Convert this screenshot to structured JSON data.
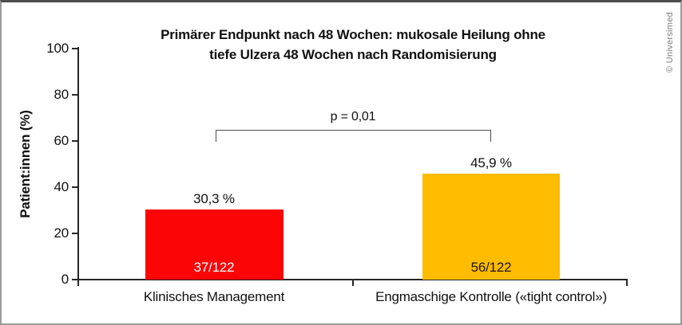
{
  "page": {
    "copyright": "© Universimed",
    "background": "#ffffff",
    "border_color": "#9a9a9a"
  },
  "chart_data": {
    "type": "bar",
    "title_line1": "Primärer Endpunkt nach 48 Wochen: mukosale Heilung ohne",
    "title_line2": "tiefe Ulzera 48 Wochen nach Randomisierung",
    "ylabel": "Patient:innen (%)",
    "xlabel": "",
    "ylim": [
      0,
      100
    ],
    "yticks": [
      0,
      20,
      40,
      60,
      80,
      100
    ],
    "grid": false,
    "legend": false,
    "axis_color": "#262626",
    "categories": [
      "Klinisches Management",
      "Engmaschige Kontrolle («tight control»)"
    ],
    "values": [
      30.3,
      45.9
    ],
    "bars": [
      {
        "category": "Klinisches Management",
        "value": 30.3,
        "value_label": "30,3 %",
        "count_label": "37/122",
        "color": "#fb0507",
        "count_text_color": "#ffffff"
      },
      {
        "category": "Engmaschige Kontrolle («tight control»)",
        "value": 45.9,
        "value_label": "45,9 %",
        "count_label": "56/122",
        "color": "#ffbc01",
        "count_text_color": "#201500"
      }
    ],
    "significance": {
      "label": "p = 0,01"
    }
  }
}
